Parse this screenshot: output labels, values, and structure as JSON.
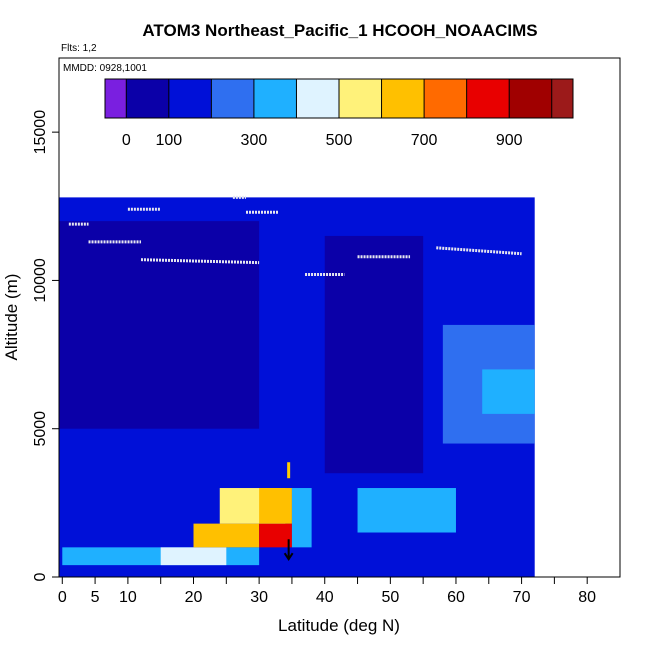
{
  "chart_data": {
    "type": "heatmap",
    "title": "ATOM3 Northeast_Pacific_1 HCOOH_NOAACIMS",
    "flights_label": "Flts: 1,2",
    "date_label": "MMDD: 0928,1001",
    "xlabel": "Latitude (deg N)",
    "ylabel": "Altitude (m)",
    "xlim": [
      -0.5,
      85
    ],
    "ylim": [
      0,
      17500
    ],
    "x_ticks": [
      0,
      5,
      10,
      20,
      30,
      40,
      50,
      60,
      70,
      80
    ],
    "x_tick_labels": [
      "0",
      "5",
      "10",
      "20",
      "30",
      "40",
      "50",
      "60",
      "70",
      "80"
    ],
    "x_minor_ticks": [
      15,
      25,
      35,
      45,
      55,
      65,
      75
    ],
    "y_ticks": [
      0,
      5000,
      10000,
      15000
    ],
    "y_tick_labels": [
      "0",
      "5000",
      "10000",
      "15000"
    ],
    "colorbar": {
      "range": [
        -50,
        1050
      ],
      "ticks": [
        0,
        100,
        300,
        500,
        700,
        900
      ],
      "tick_labels": [
        "0",
        "100",
        "300",
        "500",
        "700",
        "900"
      ],
      "boundaries": [
        0,
        100,
        200,
        300,
        400,
        500,
        600,
        700,
        800,
        900,
        1000
      ],
      "colors": [
        "#7a1fe0",
        "#0b00a8",
        "#0010d8",
        "#2f6ff0",
        "#1fb0ff",
        "#dff3ff",
        "#fff27a",
        "#ffc000",
        "#ff6a00",
        "#e80000",
        "#a00000",
        "#9c1a1a"
      ]
    },
    "regions": [
      {
        "lat": [
          -0.5,
          72
        ],
        "alt": [
          0,
          12800
        ],
        "value": 100
      },
      {
        "lat": [
          -0.5,
          30
        ],
        "alt": [
          5000,
          12000
        ],
        "value": 50
      },
      {
        "lat": [
          40,
          55
        ],
        "alt": [
          3500,
          11500
        ],
        "value": 60
      },
      {
        "lat": [
          58,
          72
        ],
        "alt": [
          4500,
          8500
        ],
        "value": 220
      },
      {
        "lat": [
          64,
          72
        ],
        "alt": [
          5500,
          7000
        ],
        "value": 380
      },
      {
        "lat": [
          0,
          30
        ],
        "alt": [
          400,
          1000
        ],
        "value": 330
      },
      {
        "lat": [
          15,
          25
        ],
        "alt": [
          400,
          1000
        ],
        "value": 480
      },
      {
        "lat": [
          20,
          30
        ],
        "alt": [
          1000,
          1800
        ],
        "value": 600
      },
      {
        "lat": [
          30,
          35
        ],
        "alt": [
          1000,
          1800
        ],
        "value": 880
      },
      {
        "lat": [
          24,
          34
        ],
        "alt": [
          1800,
          3000
        ],
        "value": 560
      },
      {
        "lat": [
          30,
          35
        ],
        "alt": [
          1800,
          3000
        ],
        "value": 660
      },
      {
        "lat": [
          35,
          38
        ],
        "alt": [
          1000,
          3000
        ],
        "value": 360
      },
      {
        "lat": [
          45,
          60
        ],
        "alt": [
          1500,
          3000
        ],
        "value": 300
      }
    ],
    "flight_track_segments": [
      {
        "lat": [
          1,
          4
        ],
        "alt": [
          11900,
          11900
        ]
      },
      {
        "lat": [
          4,
          12
        ],
        "alt": [
          11300,
          11300
        ]
      },
      {
        "lat": [
          10,
          15
        ],
        "alt": [
          12400,
          12400
        ]
      },
      {
        "lat": [
          12,
          30
        ],
        "alt": [
          10700,
          10600
        ]
      },
      {
        "lat": [
          28,
          33
        ],
        "alt": [
          12300,
          12300
        ]
      },
      {
        "lat": [
          37,
          43
        ],
        "alt": [
          10200,
          10200
        ]
      },
      {
        "lat": [
          45,
          53
        ],
        "alt": [
          10800,
          10800
        ]
      },
      {
        "lat": [
          57,
          70
        ],
        "alt": [
          11100,
          10900
        ]
      },
      {
        "lat": [
          26,
          28
        ],
        "alt": [
          12800,
          12800
        ]
      }
    ],
    "markers": [
      {
        "type": "arrow-down",
        "lat": 34.5,
        "alt": 600,
        "color": "#000000"
      },
      {
        "type": "tick",
        "lat": 34.5,
        "alt": 3600,
        "color": "#ffcc00"
      }
    ]
  }
}
